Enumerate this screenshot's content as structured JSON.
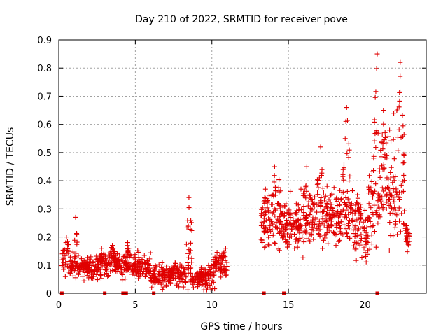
{
  "chart_data": {
    "type": "scatter",
    "title": "Day 210 of 2022, SRMTID for receiver pove",
    "xlabel": "GPS time / hours",
    "ylabel": "SRMTID / TECUs",
    "xlim": [
      0,
      24
    ],
    "ylim": [
      0,
      0.9
    ],
    "xticks": [
      0,
      5,
      10,
      15,
      20
    ],
    "yticks": [
      0,
      0.1,
      0.2,
      0.3,
      0.4,
      0.5,
      0.6,
      0.7,
      0.8,
      0.9
    ],
    "grid": true,
    "marker": "plus",
    "color": "#e00000",
    "baseline_markers_x": [
      0.2,
      3.0,
      4.2,
      4.4,
      6.2,
      13.4,
      14.7,
      20.8
    ],
    "segments": [
      {
        "x_start": 0.2,
        "x_end": 1.0,
        "base": 0.1,
        "amp": 0.03,
        "peak_x": 0.5,
        "peak_y": 0.2
      },
      {
        "x_start": 1.0,
        "x_end": 1.2,
        "base": 0.1,
        "amp": 0.05,
        "peak_x": 1.1,
        "peak_y": 0.27
      },
      {
        "x_start": 1.2,
        "x_end": 3.0,
        "base": 0.09,
        "amp": 0.03,
        "peak_x": 2.8,
        "peak_y": 0.16
      },
      {
        "x_start": 3.0,
        "x_end": 4.4,
        "base": 0.1,
        "amp": 0.03,
        "peak_x": 3.5,
        "peak_y": 0.17
      },
      {
        "x_start": 4.4,
        "x_end": 6.0,
        "base": 0.09,
        "amp": 0.03,
        "peak_x": 4.5,
        "peak_y": 0.18
      },
      {
        "x_start": 6.0,
        "x_end": 8.3,
        "base": 0.06,
        "amp": 0.03,
        "peak_x": 7.6,
        "peak_y": 0.11
      },
      {
        "x_start": 8.3,
        "x_end": 8.7,
        "base": 0.1,
        "amp": 0.06,
        "peak_x": 8.5,
        "peak_y": 0.34
      },
      {
        "x_start": 8.7,
        "x_end": 9.4,
        "base": 0.05,
        "amp": 0.02,
        "peak_x": 9.3,
        "peak_y": 0.09
      },
      {
        "x_start": 9.4,
        "x_end": 10.2,
        "base": 0.05,
        "amp": 0.03,
        "peak_x": 10.1,
        "peak_y": 0.12
      },
      {
        "x_start": 10.2,
        "x_end": 11.0,
        "base": 0.1,
        "amp": 0.03,
        "peak_x": 10.9,
        "peak_y": 0.16
      },
      {
        "x_start": 13.2,
        "x_end": 13.9,
        "base": 0.25,
        "amp": 0.08,
        "peak_x": 13.5,
        "peak_y": 0.37
      },
      {
        "x_start": 13.9,
        "x_end": 14.6,
        "base": 0.25,
        "amp": 0.1,
        "peak_x": 14.1,
        "peak_y": 0.45
      },
      {
        "x_start": 14.6,
        "x_end": 16.5,
        "base": 0.24,
        "amp": 0.06,
        "peak_x": 16.2,
        "peak_y": 0.45
      },
      {
        "x_start": 16.5,
        "x_end": 18.0,
        "base": 0.27,
        "amp": 0.07,
        "peak_x": 17.1,
        "peak_y": 0.52
      },
      {
        "x_start": 18.0,
        "x_end": 19.2,
        "base": 0.27,
        "amp": 0.08,
        "peak_x": 18.8,
        "peak_y": 0.66
      },
      {
        "x_start": 19.2,
        "x_end": 20.2,
        "base": 0.22,
        "amp": 0.08,
        "peak_x": 19.5,
        "peak_y": 0.35
      },
      {
        "x_start": 20.2,
        "x_end": 20.9,
        "base": 0.28,
        "amp": 0.1,
        "peak_x": 20.8,
        "peak_y": 0.85
      },
      {
        "x_start": 20.9,
        "x_end": 21.5,
        "base": 0.35,
        "amp": 0.1,
        "peak_x": 21.2,
        "peak_y": 0.65
      },
      {
        "x_start": 21.5,
        "x_end": 22.6,
        "base": 0.33,
        "amp": 0.1,
        "peak_x": 22.3,
        "peak_y": 0.82
      },
      {
        "x_start": 22.6,
        "x_end": 22.9,
        "base": 0.18,
        "amp": 0.04,
        "peak_x": 22.7,
        "peak_y": 0.24
      }
    ],
    "point_density_per_hour": 80
  }
}
